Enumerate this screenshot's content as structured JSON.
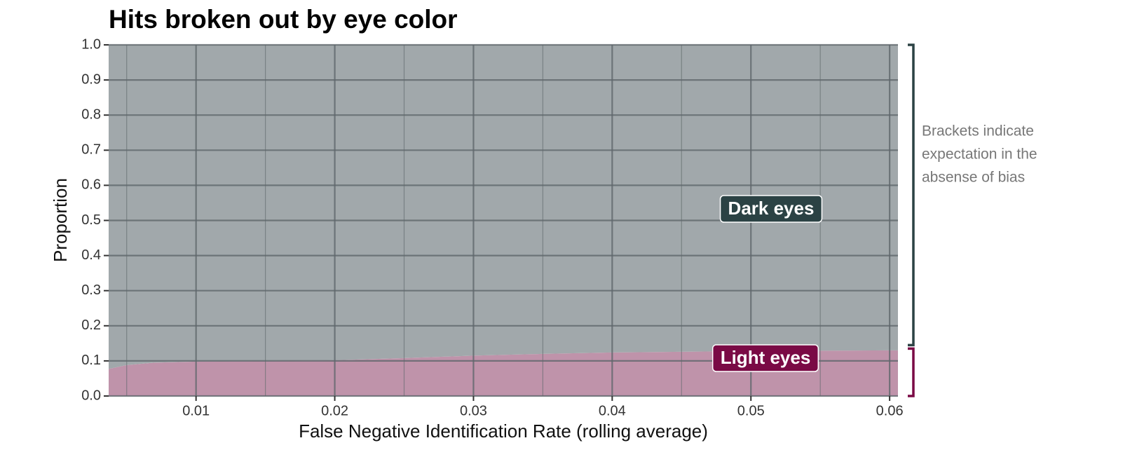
{
  "chart_data": {
    "type": "stacked_area",
    "title": "Hits broken out by eye color",
    "x_label": "False Negative Identification Rate (rolling average)",
    "y_label": "Proportion",
    "x": [
      0.0037,
      0.005,
      0.007,
      0.01,
      0.015,
      0.02,
      0.025,
      0.03,
      0.035,
      0.04,
      0.045,
      0.05,
      0.055,
      0.0606
    ],
    "series": [
      {
        "name": "Light eyes",
        "color": "#bf93aa",
        "label_color": "#7a0a45",
        "values": [
          0.077,
          0.088,
          0.095,
          0.098,
          0.1,
          0.102,
          0.108,
          0.115,
          0.12,
          0.124,
          0.126,
          0.128,
          0.129,
          0.13
        ],
        "bracket": [
          0,
          0.135
        ]
      },
      {
        "name": "Dark eyes",
        "color": "#a1a8ab",
        "label_color": "#2b4244",
        "values": [
          0.923,
          0.912,
          0.905,
          0.902,
          0.9,
          0.898,
          0.892,
          0.885,
          0.88,
          0.876,
          0.874,
          0.872,
          0.871,
          0.87
        ],
        "bracket": [
          0.145,
          1.0
        ]
      }
    ],
    "annotation": [
      "Brackets indicate",
      "expectation in the",
      "absense of bias"
    ],
    "xlim": [
      0.0037,
      0.0606
    ],
    "ylim": [
      0,
      1
    ],
    "xticks": [
      0.01,
      0.02,
      0.03,
      0.04,
      0.05,
      0.06
    ],
    "x_minor_ticks": [
      0.005,
      0.015,
      0.025,
      0.035,
      0.045,
      0.055
    ],
    "yticks": [
      {
        "value": 0,
        "label": "0.0"
      },
      0.1,
      0.2,
      0.3,
      0.4,
      0.5,
      0.6,
      0.7,
      0.8,
      0.9,
      {
        "value": 1,
        "label": "1.0"
      }
    ],
    "grid": true
  }
}
